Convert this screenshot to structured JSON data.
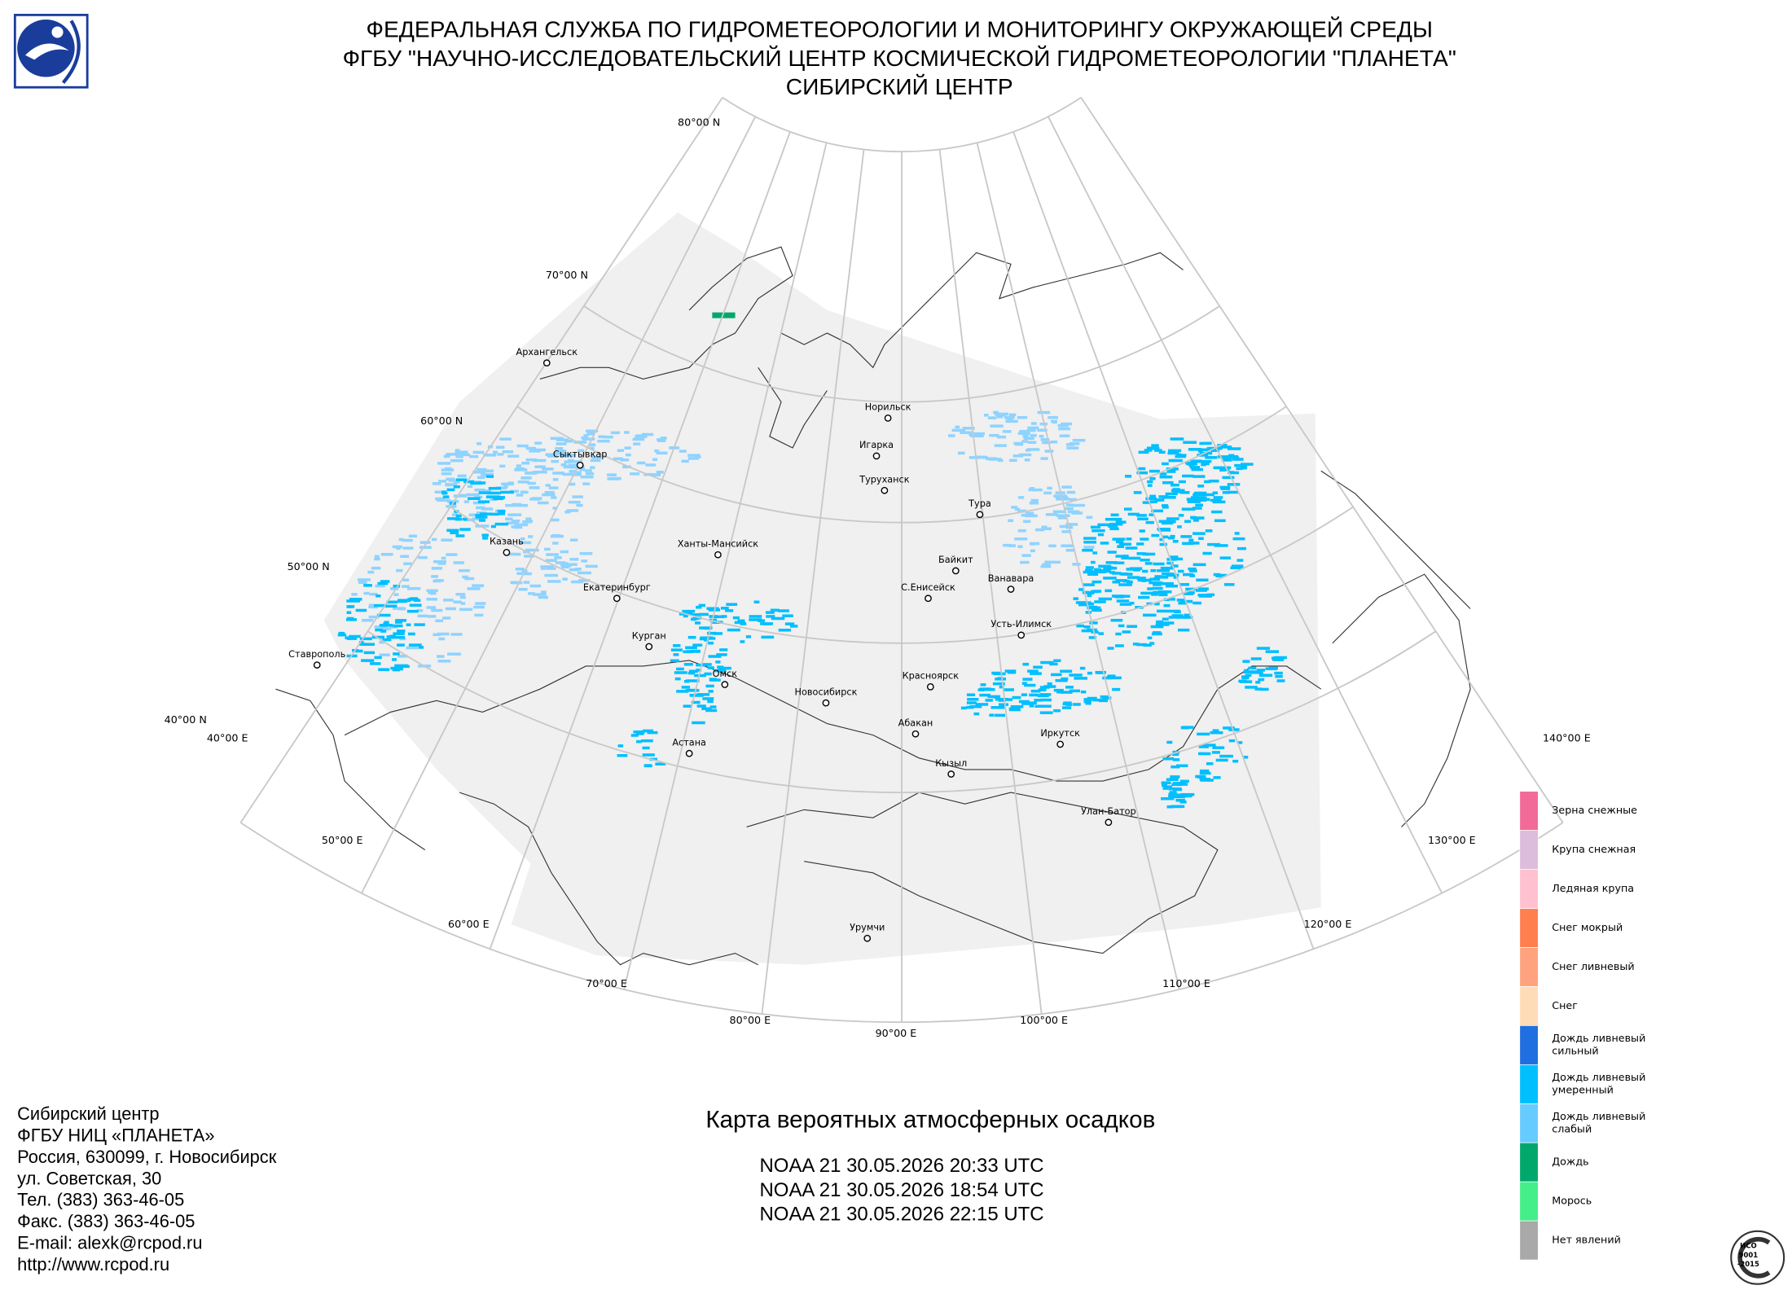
{
  "header": {
    "lines": [
      "ФЕДЕРАЛЬНАЯ СЛУЖБА ПО ГИДРОМЕТЕОРОЛОГИИ И МОНИТОРИНГУ ОКРУЖАЮЩЕЙ СРЕДЫ",
      "ФГБУ \"НАУЧНО-ИССЛЕДОВАТЕЛЬСКИЙ ЦЕНТР КОСМИЧЕСКОЙ ГИДРОМЕТЕОРОЛОГИИ \"ПЛАНЕТА\"",
      "СИБИРСКИЙ ЦЕНТР"
    ]
  },
  "graticule": {
    "lat_labels": [
      "80°00 N",
      "70°00 N",
      "60°00 N",
      "50°00 N",
      "40°00 N"
    ],
    "lon_labels": [
      "40°00 E",
      "50°00 E",
      "60°00 E",
      "70°00 E",
      "80°00 E",
      "90°00 E",
      "100°00 E",
      "110°00 E",
      "120°00 E",
      "130°00 E",
      "140°00 E"
    ]
  },
  "cities": [
    "Архангельск",
    "Сыктывкар",
    "Казань",
    "Ханты-Мансийск",
    "Екатеринбург",
    "Курган",
    "Омск",
    "Ставрополь",
    "Астана",
    "Новосибирск",
    "Норильск",
    "Игарка",
    "Туруханск",
    "Тура",
    "Байкит",
    "С.Енисейск",
    "Ванавара",
    "Усть-Илимск",
    "Красноярск",
    "Абакан",
    "Кызыл",
    "Иркутск",
    "Улан-Батор",
    "Урумчи"
  ],
  "legend": [
    {
      "color": "#f26a97",
      "lines": [
        "Зерна снежные"
      ]
    },
    {
      "color": "#dcbedc",
      "lines": [
        "Крупа снежная"
      ]
    },
    {
      "color": "#ffc0cf",
      "lines": [
        "Ледяная крупа"
      ]
    },
    {
      "color": "#ff7f4f",
      "lines": [
        "Снег мокрый"
      ]
    },
    {
      "color": "#ffa37e",
      "lines": [
        "Снег ливневый"
      ]
    },
    {
      "color": "#ffdcb8",
      "lines": [
        "Снег"
      ]
    },
    {
      "color": "#1f6fe0",
      "lines": [
        "Дождь ливневый",
        "сильный"
      ]
    },
    {
      "color": "#00bfff",
      "lines": [
        "Дождь ливневый",
        "умеренный"
      ]
    },
    {
      "color": "#66ccff",
      "lines": [
        "Дождь ливневый",
        "слабый"
      ]
    },
    {
      "color": "#00a86b",
      "lines": [
        "Дождь"
      ]
    },
    {
      "color": "#44ee88",
      "lines": [
        "Морось"
      ]
    },
    {
      "color": "#a9a9a9",
      "lines": [
        "Нет явлений"
      ]
    }
  ],
  "contact": [
    "Сибирский центр",
    "ФГБУ НИЦ «ПЛАНЕТА»",
    "Россия, 630099, г. Новосибирск",
    "ул. Советская, 30",
    "Тел. (383) 363-46-05",
    "Факс. (383) 363-46-05",
    "E-mail: alexk@rcpod.ru",
    "http://www.rcpod.ru"
  ],
  "title": "Карта вероятных атмосферных осадков",
  "passes": [
    "NOAA 21 30.05.2026  20:33 UTC",
    "NOAA 21 30.05.2026  18:54 UTC",
    "NOAA 21 30.05.2026  22:15 UTC"
  ],
  "certificate": [
    "ИСО",
    "9001",
    "-2015"
  ]
}
